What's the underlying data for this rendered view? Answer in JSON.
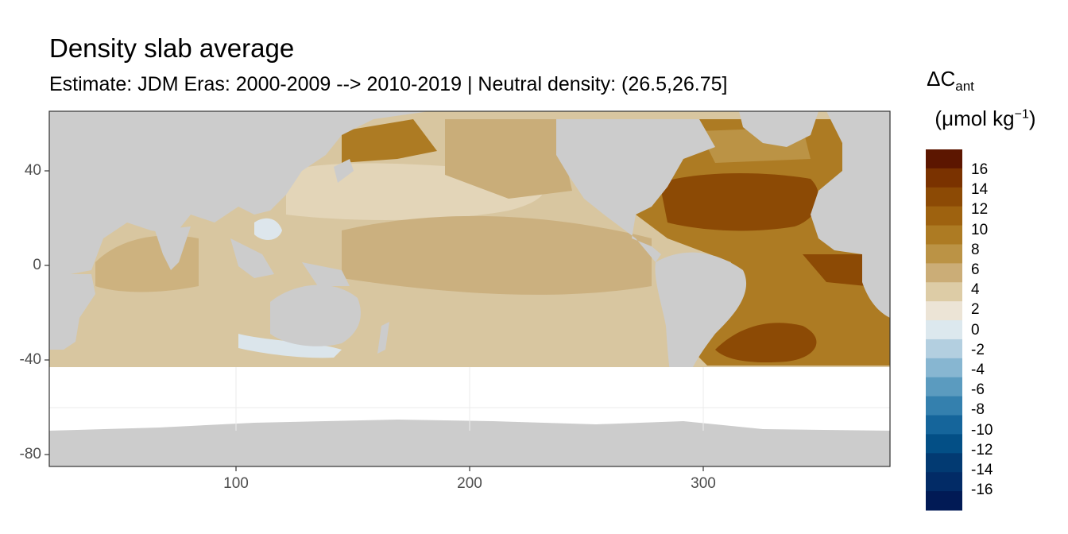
{
  "title": "Density slab average",
  "subtitle": "Estimate: JDM Eras: 2000-2009 --> 2010-2019 | Neutral density: (26.5,26.75]",
  "legend": {
    "symbol": "ΔC",
    "subscript": "ant",
    "unit_prefix": "(μmol kg",
    "unit_sup": "−1",
    "unit_suffix": ")",
    "labels": [
      "16",
      "14",
      "12",
      "10",
      "8",
      "6",
      "4",
      "2",
      "0",
      "-2",
      "-4",
      "-6",
      "-8",
      "-10",
      "-12",
      "-14",
      "-16"
    ],
    "colors": [
      "#5c1600",
      "#7a3200",
      "#8c4a05",
      "#9e620f",
      "#ad7b23",
      "#bb9345",
      "#cbad77",
      "#ddcca6",
      "#ece4d6",
      "#dce8ee",
      "#b3cfe0",
      "#87b6d1",
      "#5b9bbf",
      "#3480ae",
      "#15659b",
      "#034f86",
      "#023a72",
      "#022b66",
      "#011a55"
    ]
  },
  "axes": {
    "x_ticks": [
      "100",
      "200",
      "300"
    ],
    "y_ticks": [
      "40",
      "0",
      "-40",
      "-80"
    ],
    "x_range": [
      20,
      380
    ],
    "y_range": [
      -85,
      65
    ]
  },
  "colors": {
    "land": "#cccccc",
    "panel_border": "#333333",
    "grid": "#ebebeb"
  }
}
